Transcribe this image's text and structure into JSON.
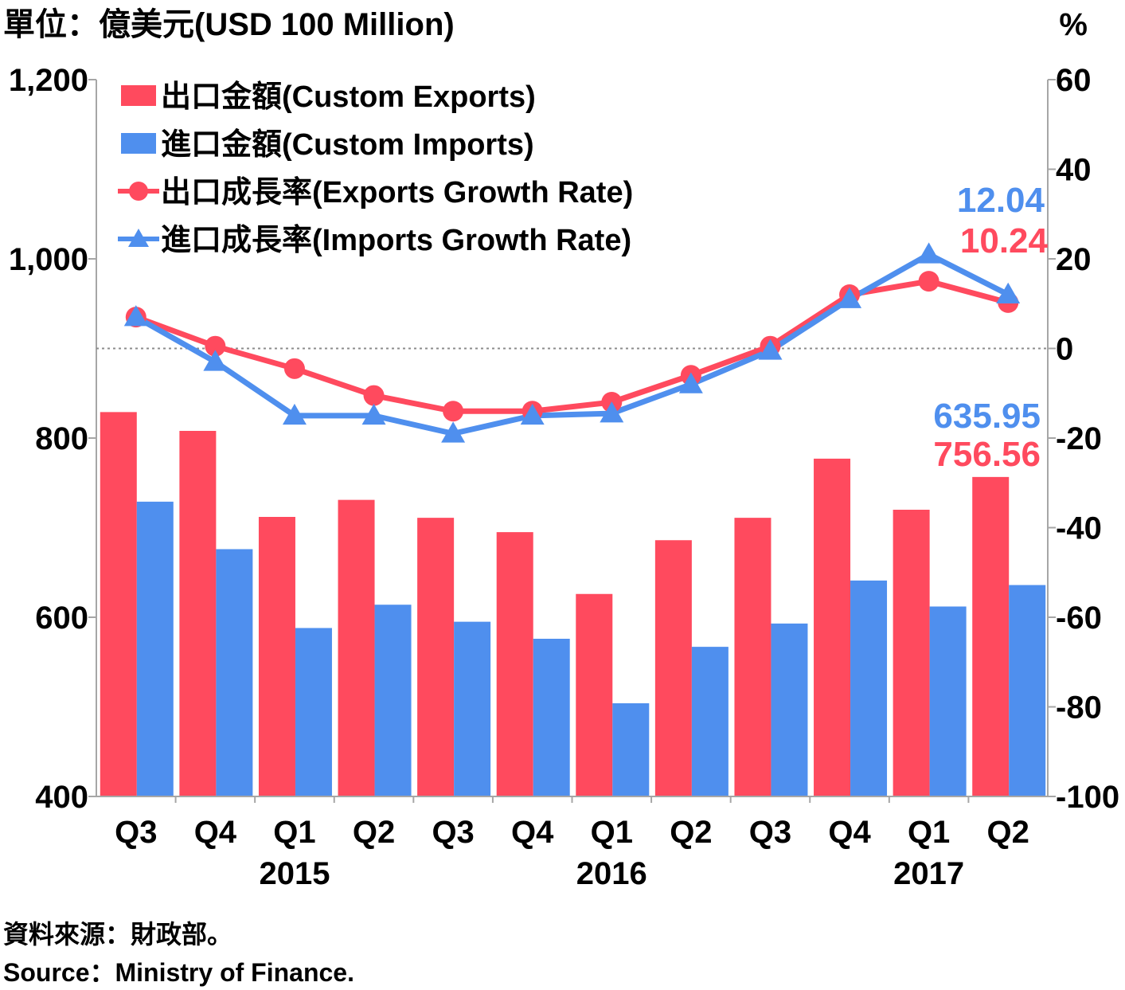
{
  "chart_data": {
    "type": "bar+line",
    "unit_label": "單位：億美元(USD 100 Million)",
    "right_unit_label": "%",
    "categories": [
      "Q3",
      "Q4",
      "Q1",
      "Q2",
      "Q3",
      "Q4",
      "Q1",
      "Q2",
      "Q3",
      "Q4",
      "Q1",
      "Q2"
    ],
    "year_labels": [
      {
        "label": "2015",
        "index": 2
      },
      {
        "label": "2016",
        "index": 6
      },
      {
        "label": "2017",
        "index": 10
      }
    ],
    "left_axis": {
      "ylim": [
        400,
        1200
      ],
      "ticks": [
        "400",
        "600",
        "800",
        "1,000",
        "1,200"
      ],
      "tick_values": [
        400,
        600,
        800,
        1000,
        1200
      ]
    },
    "right_axis": {
      "ylim": [
        -100,
        60
      ],
      "ticks": [
        "-100",
        "-80",
        "-60",
        "-40",
        "-20",
        "0",
        "20",
        "40",
        "60"
      ],
      "tick_values": [
        -100,
        -80,
        -60,
        -40,
        -20,
        0,
        20,
        40,
        60
      ]
    },
    "bar_series": [
      {
        "name": "出口金額(Custom Exports)",
        "color": "#ff4a5e",
        "values": [
          829,
          808,
          712,
          731,
          711,
          695,
          626,
          686,
          711,
          777,
          720,
          756.56
        ]
      },
      {
        "name": "進口金額(Custom Imports)",
        "color": "#4f8fee",
        "values": [
          729,
          676,
          588,
          614,
          595,
          576,
          504,
          567,
          593,
          641,
          612,
          635.95
        ]
      }
    ],
    "line_series": [
      {
        "name": "出口成長率(Exports Growth Rate)",
        "color": "#ff4a5e",
        "marker": "circle",
        "values": [
          7.0,
          0.5,
          -4.5,
          -10.5,
          -14.0,
          -14.0,
          -12.0,
          -6.0,
          0.5,
          12.0,
          15.0,
          10.24
        ]
      },
      {
        "name": "進口成長率(Imports Growth Rate)",
        "color": "#4f8fee",
        "marker": "triangle",
        "values": [
          7.0,
          -3.0,
          -15.0,
          -15.0,
          -19.0,
          -15.0,
          -14.5,
          -8.0,
          -0.5,
          11.0,
          21.0,
          12.04
        ]
      }
    ],
    "annotations": {
      "imports_growth_last": {
        "text": "12.04",
        "color": "#4f8fee"
      },
      "exports_growth_last": {
        "text": "10.24",
        "color": "#ff4a5e"
      },
      "imports_value_last": {
        "text": "635.95",
        "color": "#4f8fee"
      },
      "exports_value_last": {
        "text": "756.56",
        "color": "#ff4a5e"
      }
    },
    "zero_line": "dotted",
    "legend_position": "top-left"
  },
  "source": {
    "zh": "資料來源：財政部。",
    "en": "Source：Ministry of Finance."
  }
}
